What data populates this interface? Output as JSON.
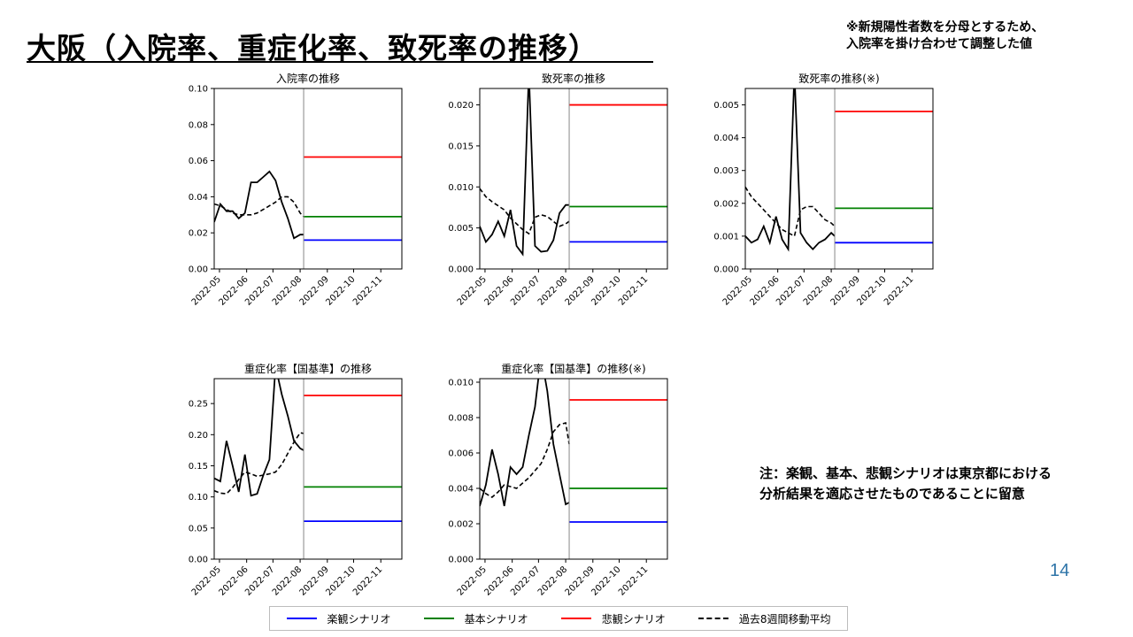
{
  "title": "大阪（入院率、重症化率、致死率の推移）",
  "top_note_lines": [
    "※新規陽性者数を分母とするため、",
    "入院率を掛け合わせて調整した値"
  ],
  "side_note_lines": [
    "注：楽観、基本、悲観シナリオは東京都における",
    "分析結果を適応させたものであることに留意"
  ],
  "page_number": "14",
  "colors": {
    "optimistic": "#0000ff",
    "base": "#008000",
    "pessimistic": "#ff0000",
    "actual": "#000000",
    "moving_avg": "#000000"
  },
  "legend": [
    {
      "label": "楽観シナリオ",
      "style": "solid",
      "color": "#0000ff"
    },
    {
      "label": "基本シナリオ",
      "style": "solid",
      "color": "#008000"
    },
    {
      "label": "悲観シナリオ",
      "style": "solid",
      "color": "#ff0000"
    },
    {
      "label": "過去8週間移動平均",
      "style": "dashed",
      "color": "#000000"
    }
  ],
  "chart_data": [
    {
      "type": "line",
      "title": "入院率の推移",
      "x_ticks": [
        "2022-05",
        "2022-06",
        "2022-07",
        "2022-08",
        "2022-09",
        "2022-10",
        "2022-11"
      ],
      "xlim": [
        "2022-04-25",
        "2022-11-25"
      ],
      "ylim": [
        0,
        0.1
      ],
      "y_ticks": [
        0.0,
        0.02,
        0.04,
        0.06,
        0.08,
        0.1
      ],
      "y_tick_labels": [
        "0.00",
        "0.02",
        "0.04",
        "0.06",
        "0.08",
        "0.10"
      ],
      "divider_date": "2022-08-05",
      "actual_x": [
        "2022-04-25",
        "2022-05-02",
        "2022-05-09",
        "2022-05-16",
        "2022-05-23",
        "2022-05-30",
        "2022-06-06",
        "2022-06-13",
        "2022-06-20",
        "2022-06-27",
        "2022-07-04",
        "2022-07-11",
        "2022-07-18",
        "2022-07-25",
        "2022-08-01",
        "2022-08-05"
      ],
      "actual_y": [
        0.026,
        0.036,
        0.032,
        0.032,
        0.028,
        0.031,
        0.048,
        0.048,
        0.051,
        0.054,
        0.049,
        0.037,
        0.028,
        0.017,
        0.019,
        0.019
      ],
      "moving_avg_x": [
        "2022-04-25",
        "2022-05-02",
        "2022-05-09",
        "2022-05-16",
        "2022-05-23",
        "2022-05-30",
        "2022-06-06",
        "2022-06-13",
        "2022-06-20",
        "2022-06-27",
        "2022-07-04",
        "2022-07-11",
        "2022-07-18",
        "2022-07-25",
        "2022-08-01",
        "2022-08-05"
      ],
      "moving_avg_y": [
        0.036,
        0.035,
        0.033,
        0.031,
        0.03,
        0.03,
        0.03,
        0.031,
        0.033,
        0.035,
        0.037,
        0.04,
        0.04,
        0.037,
        0.031,
        0.029
      ],
      "scenarios": {
        "optimistic": 0.016,
        "base": 0.029,
        "pessimistic": 0.062
      }
    },
    {
      "type": "line",
      "title": "致死率の推移",
      "x_ticks": [
        "2022-05",
        "2022-06",
        "2022-07",
        "2022-08",
        "2022-09",
        "2022-10",
        "2022-11"
      ],
      "xlim": [
        "2022-04-25",
        "2022-11-25"
      ],
      "ylim": [
        0,
        0.022
      ],
      "y_ticks": [
        0.0,
        0.005,
        0.01,
        0.015,
        0.02
      ],
      "y_tick_labels": [
        "0.000",
        "0.005",
        "0.010",
        "0.015",
        "0.020"
      ],
      "divider_date": "2022-08-05",
      "actual_x": [
        "2022-04-25",
        "2022-05-02",
        "2022-05-09",
        "2022-05-16",
        "2022-05-23",
        "2022-05-30",
        "2022-06-06",
        "2022-06-13",
        "2022-06-20",
        "2022-06-27",
        "2022-07-04",
        "2022-07-11",
        "2022-07-18",
        "2022-07-25",
        "2022-08-01",
        "2022-08-05"
      ],
      "actual_y": [
        0.0052,
        0.0033,
        0.0042,
        0.0058,
        0.004,
        0.0072,
        0.0028,
        0.0018,
        0.024,
        0.0028,
        0.0021,
        0.0022,
        0.0035,
        0.0068,
        0.0078,
        0.0078
      ],
      "moving_avg_x": [
        "2022-04-25",
        "2022-05-02",
        "2022-05-09",
        "2022-05-16",
        "2022-05-23",
        "2022-05-30",
        "2022-06-06",
        "2022-06-13",
        "2022-06-20",
        "2022-06-27",
        "2022-07-04",
        "2022-07-11",
        "2022-07-18",
        "2022-07-25",
        "2022-08-01",
        "2022-08-05"
      ],
      "moving_avg_y": [
        0.0098,
        0.0088,
        0.0082,
        0.0077,
        0.0072,
        0.0062,
        0.0055,
        0.0048,
        0.0043,
        0.0063,
        0.0066,
        0.0064,
        0.0058,
        0.0052,
        0.0055,
        0.0058
      ],
      "scenarios": {
        "optimistic": 0.0033,
        "base": 0.0076,
        "pessimistic": 0.02
      }
    },
    {
      "type": "line",
      "title": "致死率の推移(※)",
      "x_ticks": [
        "2022-05",
        "2022-06",
        "2022-07",
        "2022-08",
        "2022-09",
        "2022-10",
        "2022-11"
      ],
      "xlim": [
        "2022-04-25",
        "2022-11-25"
      ],
      "ylim": [
        0,
        0.0055
      ],
      "y_ticks": [
        0.0,
        0.001,
        0.002,
        0.003,
        0.004,
        0.005
      ],
      "y_tick_labels": [
        "0.000",
        "0.001",
        "0.002",
        "0.003",
        "0.004",
        "0.005"
      ],
      "divider_date": "2022-08-05",
      "actual_x": [
        "2022-04-25",
        "2022-05-02",
        "2022-05-09",
        "2022-05-16",
        "2022-05-23",
        "2022-05-30",
        "2022-06-06",
        "2022-06-13",
        "2022-06-20",
        "2022-06-27",
        "2022-07-04",
        "2022-07-11",
        "2022-07-18",
        "2022-07-25",
        "2022-08-01",
        "2022-08-05"
      ],
      "actual_y": [
        0.001,
        0.0008,
        0.0009,
        0.0013,
        0.0008,
        0.0016,
        0.0009,
        0.0006,
        0.006,
        0.0011,
        0.0008,
        0.0006,
        0.0008,
        0.0009,
        0.0011,
        0.001
      ],
      "moving_avg_x": [
        "2022-04-25",
        "2022-05-02",
        "2022-05-09",
        "2022-05-16",
        "2022-05-23",
        "2022-05-30",
        "2022-06-06",
        "2022-06-13",
        "2022-06-20",
        "2022-06-27",
        "2022-07-04",
        "2022-07-11",
        "2022-07-18",
        "2022-07-25",
        "2022-08-01",
        "2022-08-05"
      ],
      "moving_avg_y": [
        0.0025,
        0.0022,
        0.002,
        0.0018,
        0.0016,
        0.0014,
        0.0012,
        0.0011,
        0.001,
        0.0018,
        0.0019,
        0.0019,
        0.0017,
        0.0015,
        0.0014,
        0.0013
      ],
      "scenarios": {
        "optimistic": 0.0008,
        "base": 0.00185,
        "pessimistic": 0.0048
      }
    },
    {
      "type": "line",
      "title": "重症化率【国基準】の推移",
      "x_ticks": [
        "2022-05",
        "2022-06",
        "2022-07",
        "2022-08",
        "2022-09",
        "2022-10",
        "2022-11"
      ],
      "xlim": [
        "2022-04-25",
        "2022-11-25"
      ],
      "ylim": [
        0,
        0.29
      ],
      "y_ticks": [
        0.0,
        0.05,
        0.1,
        0.15,
        0.2,
        0.25
      ],
      "y_tick_labels": [
        "0.00",
        "0.05",
        "0.10",
        "0.15",
        "0.20",
        "0.25"
      ],
      "divider_date": "2022-08-05",
      "actual_x": [
        "2022-04-25",
        "2022-05-02",
        "2022-05-09",
        "2022-05-16",
        "2022-05-23",
        "2022-05-30",
        "2022-06-06",
        "2022-06-13",
        "2022-06-20",
        "2022-06-27",
        "2022-07-04",
        "2022-07-11",
        "2022-07-18",
        "2022-07-25",
        "2022-08-01",
        "2022-08-05"
      ],
      "actual_y": [
        0.13,
        0.125,
        0.19,
        0.15,
        0.108,
        0.168,
        0.102,
        0.105,
        0.135,
        0.16,
        0.31,
        0.265,
        0.23,
        0.19,
        0.178,
        0.175
      ],
      "moving_avg_x": [
        "2022-04-25",
        "2022-05-02",
        "2022-05-09",
        "2022-05-16",
        "2022-05-23",
        "2022-05-30",
        "2022-06-06",
        "2022-06-13",
        "2022-06-20",
        "2022-06-27",
        "2022-07-04",
        "2022-07-11",
        "2022-07-18",
        "2022-07-25",
        "2022-08-01",
        "2022-08-05"
      ],
      "moving_avg_y": [
        0.11,
        0.106,
        0.105,
        0.115,
        0.128,
        0.14,
        0.137,
        0.133,
        0.135,
        0.137,
        0.14,
        0.152,
        0.17,
        0.188,
        0.203,
        0.202
      ],
      "scenarios": {
        "optimistic": 0.061,
        "base": 0.116,
        "pessimistic": 0.263
      }
    },
    {
      "type": "line",
      "title": "重症化率【国基準】の推移(※)",
      "x_ticks": [
        "2022-05",
        "2022-06",
        "2022-07",
        "2022-08",
        "2022-09",
        "2022-10",
        "2022-11"
      ],
      "xlim": [
        "2022-04-25",
        "2022-11-25"
      ],
      "ylim": [
        0,
        0.0102
      ],
      "y_ticks": [
        0.0,
        0.002,
        0.004,
        0.006,
        0.008,
        0.01
      ],
      "y_tick_labels": [
        "0.000",
        "0.002",
        "0.004",
        "0.006",
        "0.008",
        "0.010"
      ],
      "divider_date": "2022-08-05",
      "actual_x": [
        "2022-04-25",
        "2022-05-02",
        "2022-05-09",
        "2022-05-16",
        "2022-05-23",
        "2022-05-30",
        "2022-06-06",
        "2022-06-13",
        "2022-06-20",
        "2022-06-27",
        "2022-07-04",
        "2022-07-11",
        "2022-07-18",
        "2022-07-25",
        "2022-08-01",
        "2022-08-05"
      ],
      "actual_y": [
        0.003,
        0.0042,
        0.0062,
        0.0048,
        0.003,
        0.0052,
        0.0048,
        0.0052,
        0.007,
        0.0086,
        0.0115,
        0.0095,
        0.0065,
        0.0048,
        0.0031,
        0.0032
      ],
      "moving_avg_x": [
        "2022-04-25",
        "2022-05-02",
        "2022-05-09",
        "2022-05-16",
        "2022-05-23",
        "2022-05-30",
        "2022-06-06",
        "2022-06-13",
        "2022-06-20",
        "2022-06-27",
        "2022-07-04",
        "2022-07-11",
        "2022-07-18",
        "2022-07-25",
        "2022-08-01",
        "2022-08-05"
      ],
      "moving_avg_y": [
        0.004,
        0.0037,
        0.0035,
        0.0038,
        0.0042,
        0.0041,
        0.004,
        0.0043,
        0.0046,
        0.005,
        0.0054,
        0.0062,
        0.0072,
        0.0076,
        0.0077,
        0.0065
      ],
      "scenarios": {
        "optimistic": 0.0021,
        "base": 0.004,
        "pessimistic": 0.009
      }
    }
  ]
}
